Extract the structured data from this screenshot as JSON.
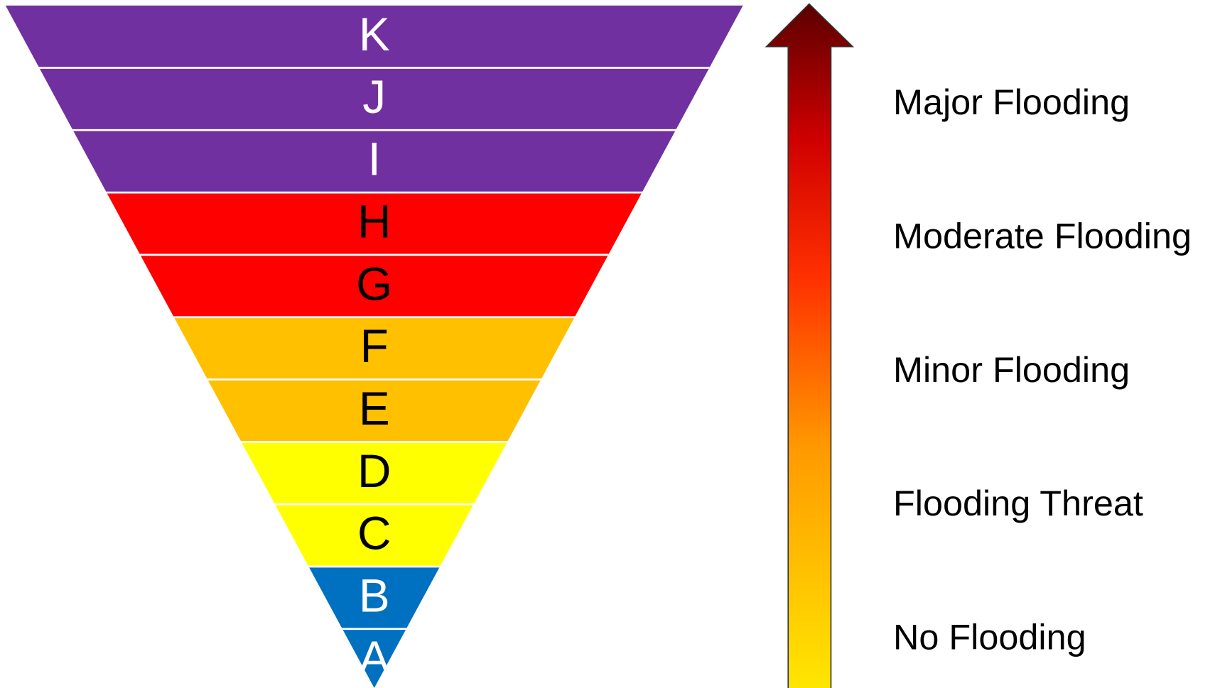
{
  "levels": [
    "K",
    "J",
    "I",
    "H",
    "G",
    "F",
    "E",
    "D",
    "C",
    "B",
    "A"
  ],
  "severity": [
    "Major Flooding",
    "Moderate Flooding",
    "Minor Flooding",
    "Flooding Threat",
    "No Flooding"
  ]
}
